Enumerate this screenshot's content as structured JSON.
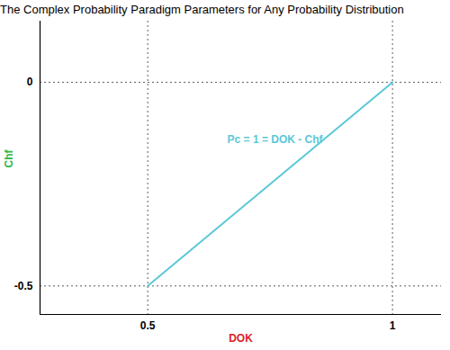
{
  "chart_data": {
    "type": "line",
    "title": "The Complex Probability Paradigm Parameters for Any Probability Distribution",
    "x_label": "DOK",
    "y_label": "Chf",
    "x": [
      0.5,
      1
    ],
    "values": [
      -0.5,
      0
    ],
    "color": "#5bc8d8",
    "xlim": [
      0.28,
      1.1
    ],
    "ylim": [
      -0.57,
      0.15
    ],
    "xticks": [
      0.5,
      1
    ],
    "yticks": [
      -0.5,
      0
    ],
    "grid": true,
    "annotations": [
      {
        "text": "Pc = 1 = DOK - Chf",
        "x": 0.76,
        "y": -0.14
      }
    ]
  }
}
